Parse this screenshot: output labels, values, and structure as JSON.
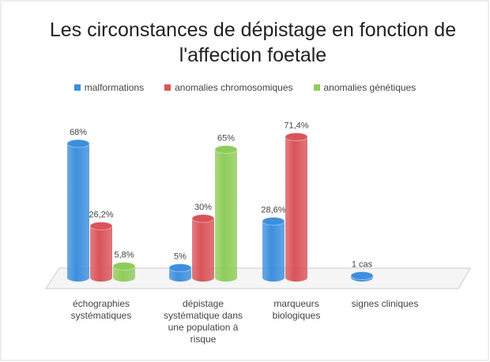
{
  "chart_data": {
    "type": "bar",
    "title": "Les circonstances de dépistage en fonction de l'affection foetale",
    "categories": [
      "échographies systématiques",
      "dépistage systématique dans une population à risque",
      "marqueurs biologiques",
      "signes cliniques"
    ],
    "series": [
      {
        "name": "malformations",
        "color": "#3d8fdd",
        "values": [
          68,
          5,
          28.6,
          1
        ],
        "value_labels": [
          "68%",
          "5%",
          "28,6%",
          "1 cas"
        ]
      },
      {
        "name": "anomalies chromosomiques",
        "color": "#d9545a",
        "values": [
          26.2,
          30,
          71.4,
          null
        ],
        "value_labels": [
          "26,2%",
          "30%",
          "71,4%",
          null
        ]
      },
      {
        "name": "anomalies génétiques",
        "color": "#8fcc5a",
        "values": [
          5.8,
          65,
          null,
          null
        ],
        "value_labels": [
          "5,8%",
          "65%",
          null,
          null
        ]
      }
    ]
  }
}
